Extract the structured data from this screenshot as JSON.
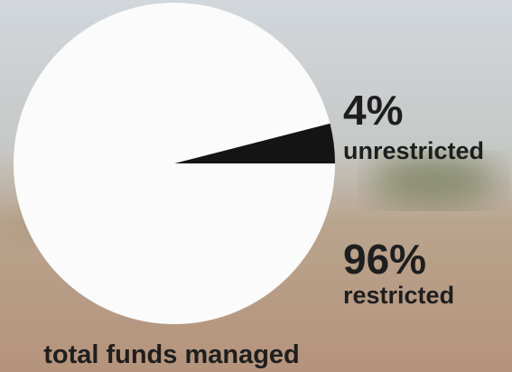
{
  "chart_data": {
    "type": "pie",
    "title": "total funds managed",
    "categories": [
      "unrestricted",
      "restricted"
    ],
    "values": [
      4,
      96
    ],
    "value_labels": [
      "4%",
      "96%"
    ],
    "colors": [
      "#141414",
      "#fbfbfb"
    ]
  }
}
